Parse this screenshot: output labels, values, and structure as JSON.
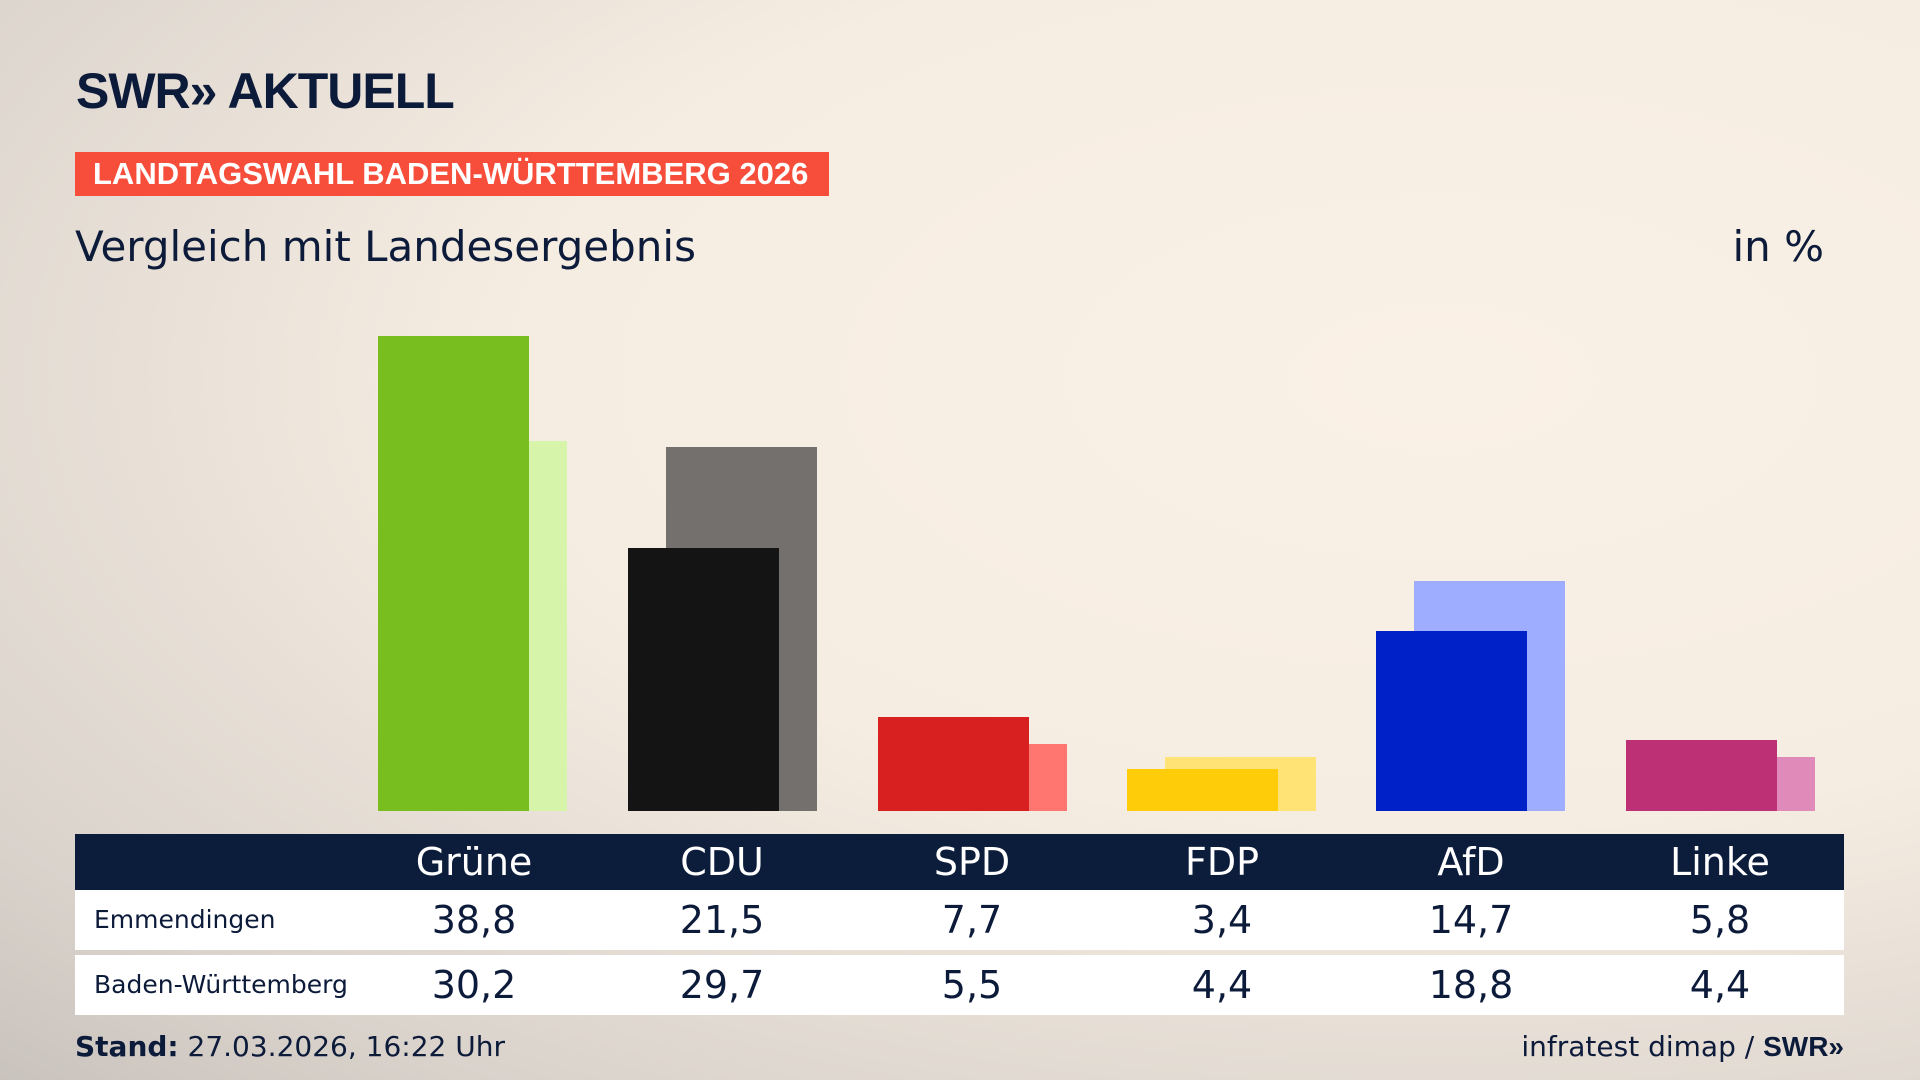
{
  "brand": {
    "logo": "SWR» AKTUELL"
  },
  "banner": "LANDTAGSWAHL BADEN-WÜRTTEMBERG 2026",
  "subtitle": "Vergleich mit Landesergebnis",
  "unit": "in %",
  "chart_data": {
    "type": "bar",
    "categories": [
      "Grüne",
      "CDU",
      "SPD",
      "FDP",
      "AfD",
      "Linke"
    ],
    "series": [
      {
        "name": "Emmendingen",
        "values": [
          38.8,
          21.5,
          7.7,
          3.4,
          14.7,
          5.8
        ]
      },
      {
        "name": "Baden-Württemberg",
        "values": [
          30.2,
          29.7,
          5.5,
          4.4,
          18.8,
          4.4
        ]
      }
    ],
    "colors_front": [
      "#78be1e",
      "#141414",
      "#d7201f",
      "#ffcc0a",
      "#0021c8",
      "#be3075"
    ],
    "colors_back": [
      "#d6f5aa",
      "#73706e",
      "#ff7570",
      "#ffe375",
      "#9eadff",
      "#df8ab8"
    ],
    "ylim": [
      0,
      40
    ]
  },
  "table": {
    "rows": [
      {
        "label": "Emmendingen",
        "values": [
          "38,8",
          "21,5",
          "7,7",
          "3,4",
          "14,7",
          "5,8"
        ]
      },
      {
        "label": "Baden-Württemberg",
        "values": [
          "30,2",
          "29,7",
          "5,5",
          "4,4",
          "18,8",
          "4,4"
        ]
      }
    ]
  },
  "footer": {
    "stand_label": "Stand:",
    "stand_value": " 27.03.2026, 16:22 Uhr",
    "source": "infratest dimap / ",
    "source_brand": "SWR»"
  }
}
